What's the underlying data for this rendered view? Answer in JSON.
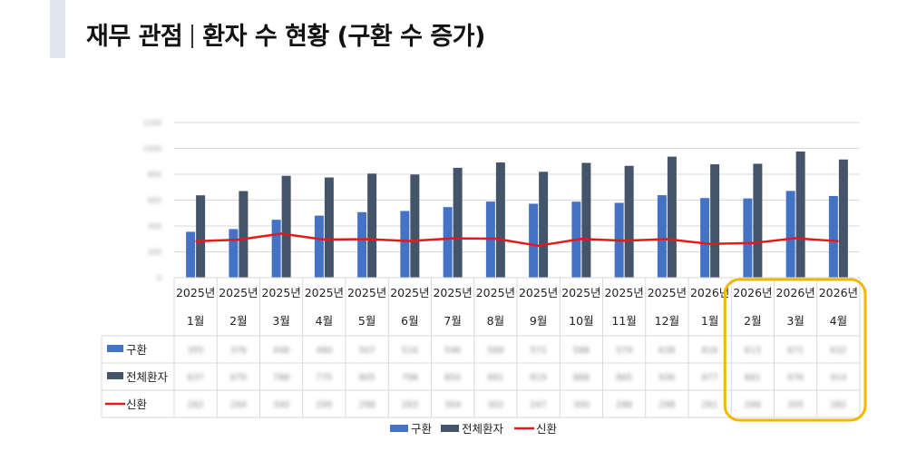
{
  "page": {
    "title_main": "재무 관점",
    "title_sub": "환자 수 현황 (구환 수 증가)"
  },
  "chart_data": {
    "type": "bar",
    "yticks": [
      "1200",
      "1000",
      "800",
      "600",
      "400",
      "200",
      "0"
    ],
    "ylim": [
      0,
      1200
    ],
    "categories": [
      {
        "year": "2025년",
        "month": "1월"
      },
      {
        "year": "2025년",
        "month": "2월"
      },
      {
        "year": "2025년",
        "month": "3월"
      },
      {
        "year": "2025년",
        "month": "4월"
      },
      {
        "year": "2025년",
        "month": "5월"
      },
      {
        "year": "2025년",
        "month": "6월"
      },
      {
        "year": "2025년",
        "month": "7월"
      },
      {
        "year": "2025년",
        "month": "8월"
      },
      {
        "year": "2025년",
        "month": "9월"
      },
      {
        "year": "2025년",
        "month": "10월"
      },
      {
        "year": "2025년",
        "month": "11월"
      },
      {
        "year": "2025년",
        "month": "12월"
      },
      {
        "year": "2026년",
        "month": "1월"
      },
      {
        "year": "2026년",
        "month": "2월"
      },
      {
        "year": "2026년",
        "month": "3월"
      },
      {
        "year": "2026년",
        "month": "4월"
      }
    ],
    "series": [
      {
        "name": "구환",
        "kind": "bar",
        "color": "#4472c4",
        "values": [
          355,
          376,
          448,
          480,
          507,
          516,
          546,
          589,
          572,
          588,
          579,
          638,
          616,
          613,
          671,
          632
        ]
      },
      {
        "name": "전체환자",
        "kind": "bar",
        "color": "#44546a",
        "values": [
          637,
          670,
          788,
          775,
          805,
          798,
          850,
          891,
          819,
          888,
          865,
          936,
          877,
          881,
          976,
          914
        ]
      },
      {
        "name": "신환",
        "kind": "line",
        "color": "#e31a1c",
        "values": [
          282,
          294,
          340,
          295,
          298,
          283,
          304,
          302,
          247,
          300,
          286,
          298,
          261,
          268,
          305,
          282
        ]
      }
    ],
    "grid": true,
    "legend": "bottom",
    "highlight": {
      "color": "#f2b700"
    }
  }
}
